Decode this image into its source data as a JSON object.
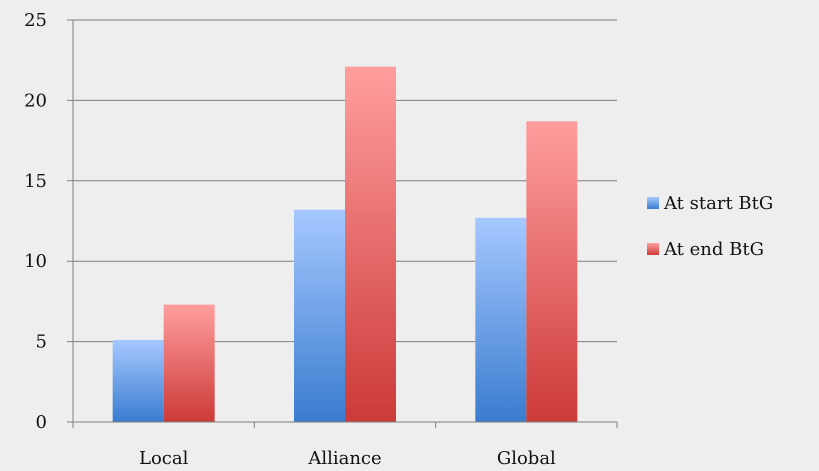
{
  "chart_data": {
    "type": "bar",
    "title": "",
    "xlabel": "",
    "ylabel": "",
    "categories": [
      "Local",
      "Alliance",
      "Global"
    ],
    "series": [
      {
        "name": "At start BtG",
        "values": [
          5.1,
          13.2,
          12.7
        ],
        "color": "#4f81bd"
      },
      {
        "name": "At end BtG",
        "values": [
          7.3,
          22.1,
          18.7
        ],
        "color": "#c0504d"
      }
    ],
    "ylim": [
      0,
      25
    ],
    "yticks": [
      "0",
      "5",
      "10",
      "15",
      "20",
      "25"
    ],
    "grid": true,
    "legend": "right"
  }
}
